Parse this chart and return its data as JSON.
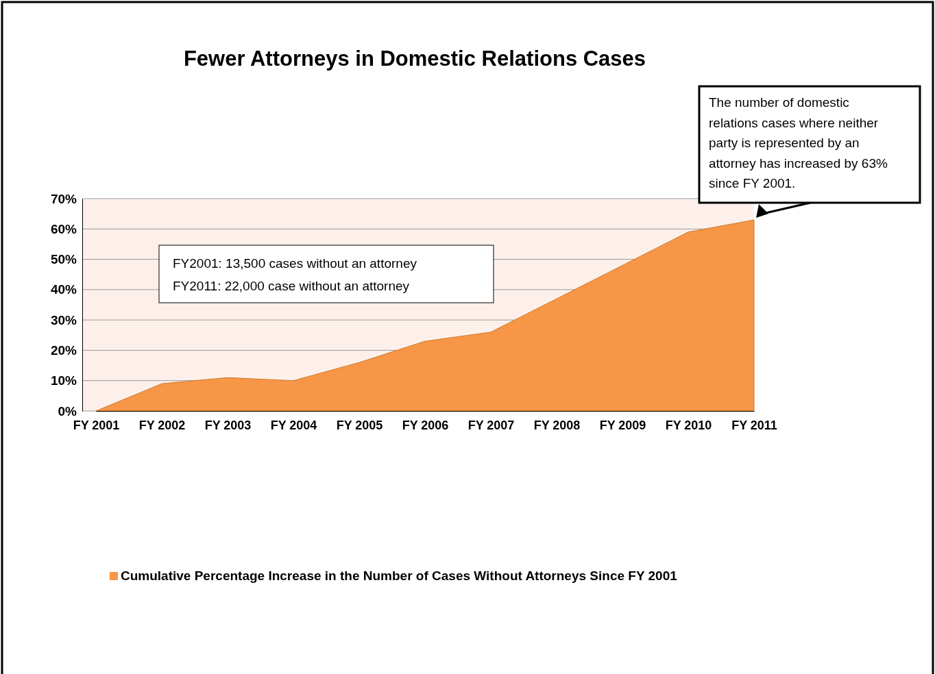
{
  "chart_data": {
    "type": "area",
    "title": "Fewer Attorneys in Domestic Relations Cases",
    "categories": [
      "FY 2001",
      "FY 2002",
      "FY 2003",
      "FY 2004",
      "FY 2005",
      "FY 2006",
      "FY 2007",
      "FY 2008",
      "FY 2009",
      "FY 2010",
      "FY 2011"
    ],
    "series": [
      {
        "name": "Cumulative Percentage Increase in the Number of Cases Without Attorneys Since FY 2001",
        "color": "#f79646",
        "values": [
          0,
          9,
          11,
          10,
          16,
          23,
          26,
          37,
          48,
          59,
          63
        ]
      }
    ],
    "ylim": [
      0,
      70
    ],
    "yticks": [
      {
        "value": 0,
        "label": "0%"
      },
      {
        "value": 10,
        "label": "10%"
      },
      {
        "value": 20,
        "label": "20%"
      },
      {
        "value": 30,
        "label": "30%"
      },
      {
        "value": 40,
        "label": "40%"
      },
      {
        "value": 50,
        "label": "50%"
      },
      {
        "value": 60,
        "label": "60%"
      },
      {
        "value": 70,
        "label": "70%"
      }
    ],
    "grid": "y",
    "legend": "bottom",
    "annotations": [
      "The number of domestic relations cases where neither party is represented by an attorney has increased by 63% since FY 2001.",
      "FY2001: 13,500 cases without an attorney\nFY2011: 22,000 case without an attorney"
    ]
  }
}
